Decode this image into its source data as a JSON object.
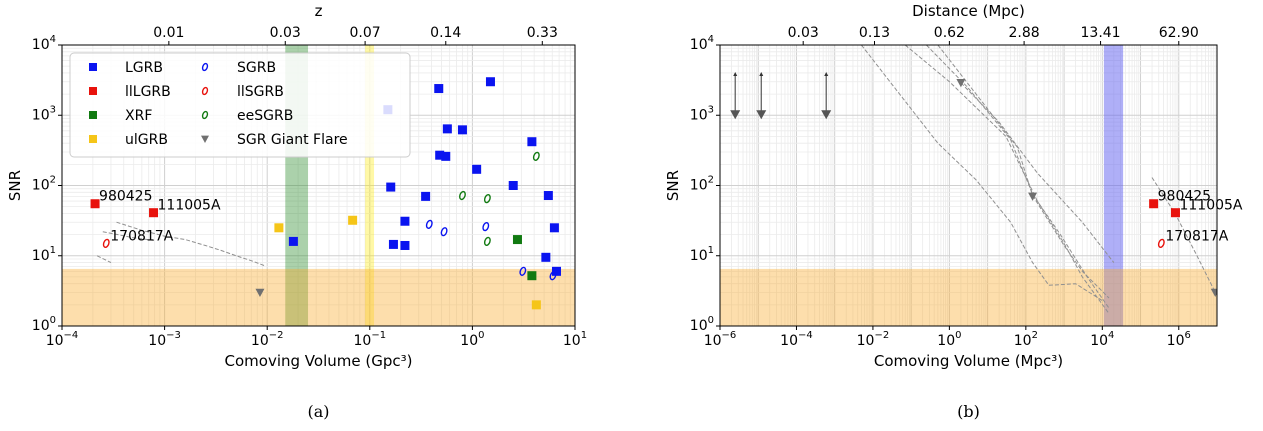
{
  "chart_data": [
    {
      "type": "scatter",
      "caption": "(a)",
      "xlabel": "Comoving Volume (Gpc³)",
      "xscale": "log",
      "xlim": [
        0.0001,
        10
      ],
      "x_ticks": [
        {
          "value": 0.0001,
          "label": "10",
          "exp": "−4"
        },
        {
          "value": 0.001,
          "label": "10",
          "exp": "−3"
        },
        {
          "value": 0.01,
          "label": "10",
          "exp": "−2"
        },
        {
          "value": 0.1,
          "label": "10",
          "exp": "−1"
        },
        {
          "value": 1,
          "label": "10",
          "exp": "0"
        },
        {
          "value": 10,
          "label": "10",
          "exp": "1"
        }
      ],
      "ylabel": "SNR",
      "yscale": "log",
      "ylim": [
        1,
        10000
      ],
      "y_ticks": [
        {
          "value": 1,
          "label": "10",
          "exp": "0"
        },
        {
          "value": 10,
          "label": "10",
          "exp": "1"
        },
        {
          "value": 100,
          "label": "10",
          "exp": "2"
        },
        {
          "value": 1000,
          "label": "10",
          "exp": "3"
        },
        {
          "value": 10000,
          "label": "10",
          "exp": "4"
        }
      ],
      "top_xlabel": "z",
      "top_ticks": [
        {
          "x": 0.0011,
          "label": "0.01"
        },
        {
          "x": 0.015,
          "label": "0.03"
        },
        {
          "x": 0.09,
          "label": "0.07"
        },
        {
          "x": 0.55,
          "label": "0.14"
        },
        {
          "x": 4.8,
          "label": "0.33"
        }
      ],
      "grid": true,
      "legend_position": "top-left",
      "legend": [
        {
          "label": "LGRB",
          "marker": "square",
          "color": "#0a14f0"
        },
        {
          "label": "llLGRB",
          "marker": "square",
          "color": "#e8120c"
        },
        {
          "label": "XRF",
          "marker": "square",
          "color": "#117a11"
        },
        {
          "label": "ulGRB",
          "marker": "square",
          "color": "#f5c518"
        },
        {
          "label": "SGRB",
          "marker": "ring",
          "color": "#0a14f0"
        },
        {
          "label": "llSGRB",
          "marker": "ring",
          "color": "#e8120c"
        },
        {
          "label": "eeSGRB",
          "marker": "ring",
          "color": "#117a11"
        },
        {
          "label": "SGR Giant Flare",
          "marker": "triangle-down",
          "color": "#707070"
        }
      ],
      "bands": [
        {
          "axis": "x",
          "from": 0.015,
          "to": 0.025,
          "color": "#2e8b2e",
          "opacity": 0.4
        },
        {
          "axis": "x",
          "from": 0.09,
          "to": 0.11,
          "color": "#ffea00",
          "opacity": 0.35
        },
        {
          "axis": "y",
          "from": 1,
          "to": 6.5,
          "color": "#f9a825",
          "opacity": 0.38
        }
      ],
      "series": [
        {
          "name": "LGRB",
          "marker": "square",
          "color": "#0a14f0",
          "points": [
            [
              0.018,
              16
            ],
            [
              0.15,
              1200
            ],
            [
              0.16,
              95
            ],
            [
              0.17,
              14.5
            ],
            [
              0.22,
              31
            ],
            [
              0.22,
              14
            ],
            [
              0.35,
              70
            ],
            [
              0.47,
              2400
            ],
            [
              0.48,
              270
            ],
            [
              0.55,
              260
            ],
            [
              0.57,
              640
            ],
            [
              0.8,
              620
            ],
            [
              1.1,
              170
            ],
            [
              1.5,
              3000
            ],
            [
              2.5,
              100
            ],
            [
              3.8,
              420
            ],
            [
              5.2,
              9.5
            ],
            [
              5.5,
              72
            ],
            [
              6.3,
              25
            ],
            [
              6.6,
              6
            ]
          ]
        },
        {
          "name": "llLGRB",
          "marker": "square",
          "color": "#e8120c",
          "points": [
            [
              0.00021,
              55
            ],
            [
              0.00078,
              41
            ]
          ]
        },
        {
          "name": "XRF",
          "marker": "square",
          "color": "#117a11",
          "points": [
            [
              2.75,
              17
            ],
            [
              3.8,
              5.2
            ]
          ]
        },
        {
          "name": "ulGRB",
          "marker": "square",
          "color": "#f5c518",
          "points": [
            [
              0.013,
              25
            ],
            [
              0.068,
              32
            ],
            [
              4.2,
              2
            ]
          ]
        },
        {
          "name": "SGRB",
          "marker": "ring",
          "color": "#0a14f0",
          "points": [
            [
              0.38,
              28
            ],
            [
              0.53,
              22
            ],
            [
              1.35,
              26
            ],
            [
              3.1,
              6
            ],
            [
              6.1,
              5.2
            ]
          ]
        },
        {
          "name": "llSGRB",
          "marker": "ring",
          "color": "#e8120c",
          "points": [
            [
              0.00027,
              15
            ]
          ]
        },
        {
          "name": "eeSGRB",
          "marker": "ring",
          "color": "#117a11",
          "points": [
            [
              0.8,
              72
            ],
            [
              1.4,
              65
            ],
            [
              1.4,
              16
            ],
            [
              4.2,
              260
            ]
          ]
        },
        {
          "name": "SGR Giant Flare",
          "marker": "triangle-down",
          "color": "#707070",
          "points": [
            [
              0.0085,
              3
            ]
          ]
        }
      ],
      "annotations": [
        {
          "text": "980425",
          "x": 0.00021,
          "y": 55
        },
        {
          "text": "111005A",
          "x": 0.00078,
          "y": 41
        },
        {
          "text": "170817A",
          "x": 0.00027,
          "y": 15
        }
      ],
      "curves": [
        [
          [
            0.00034,
            30
          ],
          [
            0.0006,
            23
          ],
          [
            0.001,
            19
          ],
          [
            0.0016,
            17
          ],
          [
            0.0025,
            14
          ],
          [
            0.0035,
            12
          ],
          [
            0.005,
            10
          ],
          [
            0.007,
            8.5
          ],
          [
            0.0095,
            7.2
          ]
        ],
        [
          [
            0.00025,
            22
          ],
          [
            0.0005,
            18
          ],
          [
            0.0008,
            16.5
          ]
        ],
        [
          [
            0.00022,
            10
          ],
          [
            0.0003,
            8
          ]
        ]
      ]
    },
    {
      "type": "scatter",
      "caption": "(b)",
      "xlabel": "Comoving Volume (Mpc³)",
      "xscale": "log",
      "xlim": [
        1e-06,
        10000000
      ],
      "x_ticks": [
        {
          "value": 1e-06,
          "label": "10",
          "exp": "−6"
        },
        {
          "value": 0.0001,
          "label": "10",
          "exp": "−4"
        },
        {
          "value": 0.01,
          "label": "10",
          "exp": "−2"
        },
        {
          "value": 1,
          "label": "10",
          "exp": "0"
        },
        {
          "value": 100,
          "label": "10",
          "exp": "2"
        },
        {
          "value": 10000,
          "label": "10",
          "exp": "4"
        },
        {
          "value": 1000000,
          "label": "10",
          "exp": "6"
        }
      ],
      "ylabel": "SNR",
      "yscale": "log",
      "ylim": [
        1,
        10000
      ],
      "y_ticks": [
        {
          "value": 1,
          "label": "10",
          "exp": "0"
        },
        {
          "value": 10,
          "label": "10",
          "exp": "1"
        },
        {
          "value": 100,
          "label": "10",
          "exp": "2"
        },
        {
          "value": 1000,
          "label": "10",
          "exp": "3"
        },
        {
          "value": 10000,
          "label": "10",
          "exp": "4"
        }
      ],
      "top_xlabel": "Distance (Mpc)",
      "top_ticks": [
        {
          "x": 0.00015,
          "label": "0.03"
        },
        {
          "x": 0.011,
          "label": "0.13"
        },
        {
          "x": 1,
          "label": "0.62"
        },
        {
          "x": 90,
          "label": "2.88"
        },
        {
          "x": 9000,
          "label": "13.41"
        },
        {
          "x": 1000000,
          "label": "62.90"
        }
      ],
      "grid": true,
      "bands": [
        {
          "axis": "x",
          "from": 11000,
          "to": 35000,
          "color": "#6060f0",
          "opacity": 0.5
        },
        {
          "axis": "y",
          "from": 1,
          "to": 6.5,
          "color": "#f9a825",
          "opacity": 0.38
        }
      ],
      "limits": [
        {
          "x": 2.5e-06,
          "from": 4000,
          "to": 1000
        },
        {
          "x": 1.2e-05,
          "from": 4000,
          "to": 1000
        },
        {
          "x": 0.0006,
          "from": 4000,
          "to": 1000
        }
      ],
      "series": [
        {
          "name": "llLGRB",
          "marker": "square",
          "color": "#e8120c",
          "points": [
            [
              220000,
              55
            ],
            [
              820000,
              41
            ]
          ]
        },
        {
          "name": "llSGRB",
          "marker": "ring",
          "color": "#e8120c",
          "points": [
            [
              350000,
              15
            ]
          ]
        },
        {
          "name": "SGR Giant Flare",
          "marker": "triangle-down",
          "color": "#707070",
          "points": [
            [
              2,
              2900
            ],
            [
              150,
              70
            ],
            [
              9000000,
              3
            ]
          ]
        }
      ],
      "annotations": [
        {
          "text": "980425",
          "x": 220000,
          "y": 55
        },
        {
          "text": "111005A",
          "x": 820000,
          "y": 41
        },
        {
          "text": "170817A",
          "x": 350000,
          "y": 15
        }
      ],
      "curves": [
        [
          [
            0.07,
            10000
          ],
          [
            1,
            3000
          ],
          [
            30,
            500
          ],
          [
            200,
            60
          ],
          [
            1000,
            15
          ],
          [
            3000,
            5
          ],
          [
            15000,
            1.5
          ]
        ],
        [
          [
            0.25,
            10000
          ],
          [
            3,
            2500
          ],
          [
            40,
            450
          ],
          [
            150,
            75
          ],
          [
            800,
            20
          ],
          [
            4000,
            5
          ],
          [
            15000,
            1.8
          ]
        ],
        [
          [
            0.5,
            10000
          ],
          [
            5,
            2000
          ],
          [
            60,
            350
          ],
          [
            150,
            72
          ],
          [
            1000,
            14
          ],
          [
            3000,
            6
          ],
          [
            15000,
            2.5
          ]
        ],
        [
          [
            0.005,
            10000
          ],
          [
            0.05,
            2000
          ],
          [
            0.5,
            400
          ],
          [
            5,
            120
          ],
          [
            40,
            30
          ],
          [
            150,
            8
          ],
          [
            400,
            3.8
          ],
          [
            2000,
            4
          ],
          [
            10000,
            2.3
          ]
        ],
        [
          [
            2,
            2900
          ],
          [
            20,
            800
          ],
          [
            200,
            150
          ],
          [
            3000,
            30
          ],
          [
            20000,
            8
          ]
        ],
        [
          [
            200000,
            130
          ],
          [
            800000,
            40
          ],
          [
            3000000,
            10
          ],
          [
            9000000,
            3
          ]
        ]
      ]
    }
  ]
}
